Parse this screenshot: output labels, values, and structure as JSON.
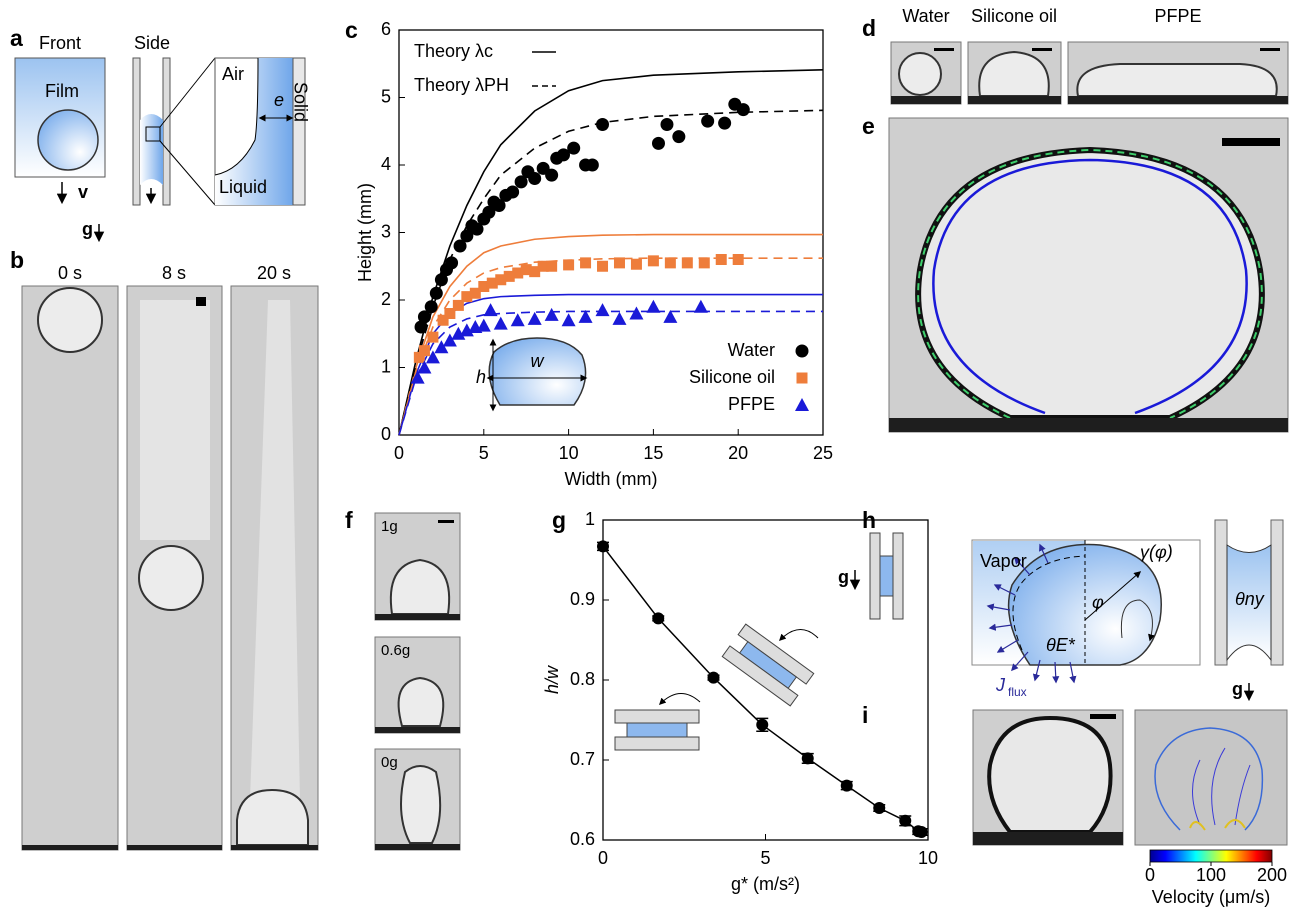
{
  "panels": {
    "a": {
      "label": "a",
      "front": "Front",
      "side": "Side",
      "film": "Film",
      "velocity": "v",
      "air": "Air",
      "thickness": "e",
      "solid": "Solid",
      "liquid": "Liquid",
      "gravity": "g"
    },
    "b": {
      "label": "b",
      "times": [
        "0 s",
        "8 s",
        "20 s"
      ]
    },
    "d": {
      "label": "d",
      "titles": [
        "Water",
        "Silicone oil",
        "PFPE"
      ]
    },
    "e": {
      "label": "e"
    },
    "f": {
      "label": "f",
      "gravities": [
        "1g",
        "0.6g",
        "0g"
      ]
    },
    "h": {
      "label": "h",
      "vapor": "Vapor",
      "surface_tension": "γ(φ)",
      "angle": "φ",
      "contact_angle": "θE*",
      "tube_angle": "θny",
      "flux": "J",
      "flux_sub": "flux",
      "gravity": "g"
    },
    "i": {
      "label": "i",
      "colorbar": {
        "title": "Velocity (μm/s)",
        "lim": [
          0,
          200
        ],
        "ticks": [
          0,
          100,
          200
        ]
      }
    }
  },
  "chart_data": [
    {
      "type": "scatter",
      "panel_label": "c",
      "xlabel": "Width (mm)",
      "ylabel": "Height (mm)",
      "xlim": [
        0,
        25
      ],
      "ylim": [
        0,
        6
      ],
      "xticks": [
        0,
        5,
        10,
        15,
        20,
        25
      ],
      "yticks": [
        0,
        1,
        2,
        3,
        4,
        5,
        6
      ],
      "inset_labels": [
        "h",
        "w"
      ],
      "legend": "lower right",
      "theory": [
        {
          "name": "Theory λc",
          "dash": false,
          "x": [
            0,
            1,
            2,
            3,
            4,
            5,
            6,
            8,
            10,
            12,
            15,
            20,
            25
          ],
          "curves": [
            {
              "color": "#000000",
              "values": [
                0,
                1.1,
                2.05,
                2.8,
                3.4,
                3.9,
                4.3,
                4.8,
                5.1,
                5.25,
                5.33,
                5.38,
                5.41
              ]
            },
            {
              "color": "#ee7d3b",
              "values": [
                0,
                1.0,
                1.75,
                2.2,
                2.5,
                2.7,
                2.8,
                2.9,
                2.94,
                2.96,
                2.97,
                2.97,
                2.97
              ]
            },
            {
              "color": "#1a1ad8",
              "values": [
                0,
                0.9,
                1.5,
                1.8,
                1.95,
                2.02,
                2.05,
                2.07,
                2.08,
                2.08,
                2.08,
                2.08,
                2.08
              ]
            }
          ]
        },
        {
          "name": "Theory λPH",
          "dash": true,
          "x": [
            0,
            1,
            2,
            3,
            4,
            5,
            6,
            8,
            10,
            12,
            15,
            20,
            25
          ],
          "curves": [
            {
              "color": "#000000",
              "values": [
                0,
                1.05,
                1.9,
                2.6,
                3.1,
                3.5,
                3.85,
                4.25,
                4.5,
                4.63,
                4.72,
                4.78,
                4.81
              ]
            },
            {
              "color": "#ee7d3b",
              "values": [
                0,
                0.95,
                1.6,
                2.0,
                2.25,
                2.4,
                2.48,
                2.56,
                2.59,
                2.61,
                2.62,
                2.62,
                2.62
              ]
            },
            {
              "color": "#1a1ad8",
              "values": [
                0,
                0.85,
                1.35,
                1.6,
                1.72,
                1.78,
                1.8,
                1.82,
                1.83,
                1.83,
                1.83,
                1.83,
                1.83
              ]
            }
          ]
        }
      ],
      "series": [
        {
          "name": "Water",
          "color": "#000000",
          "marker": "circle",
          "x": [
            1.3,
            1.5,
            1.9,
            2.2,
            2.5,
            2.8,
            3.1,
            3.6,
            4,
            4.3,
            4.6,
            5,
            5.3,
            5.6,
            5.9,
            6.3,
            6.7,
            7.2,
            7.6,
            8,
            8.5,
            9,
            9.3,
            9.7,
            10.3,
            11,
            11.4,
            12,
            15.3,
            15.8,
            16.5,
            18.2,
            19.2,
            19.8,
            20.3
          ],
          "values": [
            1.6,
            1.75,
            1.9,
            2.1,
            2.3,
            2.45,
            2.55,
            2.8,
            2.95,
            3.1,
            3.05,
            3.2,
            3.3,
            3.45,
            3.4,
            3.55,
            3.6,
            3.75,
            3.9,
            3.8,
            3.95,
            3.85,
            4.1,
            4.15,
            4.25,
            4.0,
            4.0,
            4.6,
            4.32,
            4.6,
            4.42,
            4.65,
            4.62,
            4.9,
            4.82
          ]
        },
        {
          "name": "Silicone oil",
          "color": "#ee7d3b",
          "marker": "square",
          "x": [
            1.2,
            1.5,
            2,
            2.6,
            3,
            3.5,
            4,
            4.5,
            5,
            5.5,
            6,
            6.5,
            7,
            7.5,
            8,
            8.5,
            9,
            10,
            11,
            12,
            13,
            14,
            15,
            16,
            17,
            18,
            19,
            20
          ],
          "values": [
            1.15,
            1.25,
            1.45,
            1.7,
            1.8,
            1.92,
            2.05,
            2.1,
            2.2,
            2.25,
            2.3,
            2.35,
            2.4,
            2.45,
            2.42,
            2.5,
            2.5,
            2.52,
            2.55,
            2.5,
            2.55,
            2.53,
            2.58,
            2.55,
            2.55,
            2.55,
            2.6,
            2.6
          ]
        },
        {
          "name": "PFPE",
          "color": "#1a1ad8",
          "marker": "triangle",
          "x": [
            1.1,
            1.5,
            2,
            2.5,
            3,
            3.5,
            4,
            4.5,
            5,
            5.4,
            6,
            7,
            8,
            9,
            10,
            11,
            12,
            13,
            14,
            15,
            16,
            17.8
          ],
          "values": [
            0.85,
            1.0,
            1.15,
            1.3,
            1.4,
            1.5,
            1.55,
            1.6,
            1.62,
            1.85,
            1.65,
            1.7,
            1.72,
            1.78,
            1.7,
            1.75,
            1.85,
            1.72,
            1.8,
            1.9,
            1.75,
            1.9
          ]
        }
      ]
    },
    {
      "type": "line",
      "panel_label": "g",
      "xlabel": "g* (m/s²)",
      "ylabel": "h/w",
      "gravity_label": "g",
      "xlim": [
        0,
        10
      ],
      "ylim": [
        0.6,
        1
      ],
      "xticks": [
        0,
        5,
        10
      ],
      "yticks": [
        0.6,
        0.7,
        0.8,
        0.9,
        1
      ],
      "series": [
        {
          "color": "#000000",
          "x": [
            0,
            1.7,
            3.4,
            4.9,
            6.3,
            7.5,
            8.5,
            9.3,
            9.7,
            9.8
          ],
          "values": [
            0.967,
            0.877,
            0.803,
            0.744,
            0.702,
            0.668,
            0.64,
            0.624,
            0.611,
            0.61
          ],
          "errors": [
            0.005,
            0.003,
            0.003,
            0.008,
            0.006,
            0.005,
            0.004,
            0.006,
            0.004,
            0.004
          ]
        }
      ]
    }
  ]
}
